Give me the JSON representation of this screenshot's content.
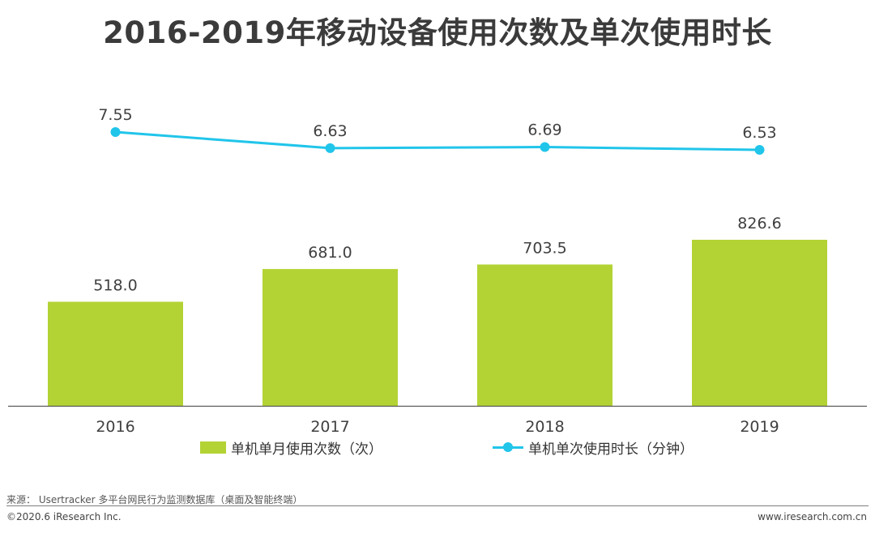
{
  "title": "2016-2019年移动设备使用次数及单次使用时长",
  "colors": {
    "bar": "#b3d334",
    "line": "#21c5ea",
    "axis": "#5a5a5a",
    "label": "#404040"
  },
  "chart_data": {
    "type": "bar+line",
    "categories": [
      "2016",
      "2017",
      "2018",
      "2019"
    ],
    "series": [
      {
        "name": "单机单月使用次数（次）",
        "type": "bar",
        "values": [
          518.0,
          681.0,
          703.5,
          826.6
        ],
        "labels": [
          "518.0",
          "681.0",
          "703.5",
          "826.6"
        ]
      },
      {
        "name": "单机单次使用时长（分钟）",
        "type": "line",
        "values": [
          7.55,
          6.63,
          6.69,
          6.53
        ],
        "labels": [
          "7.55",
          "6.63",
          "6.69",
          "6.53"
        ]
      }
    ],
    "legend_position": "bottom-center"
  },
  "footer": {
    "source": "来源： Usertracker 多平台网民行为监测数据库（桌面及智能终端）",
    "copyright": "©2020.6 iResearch Inc.",
    "website": "www.iresearch.com.cn"
  }
}
